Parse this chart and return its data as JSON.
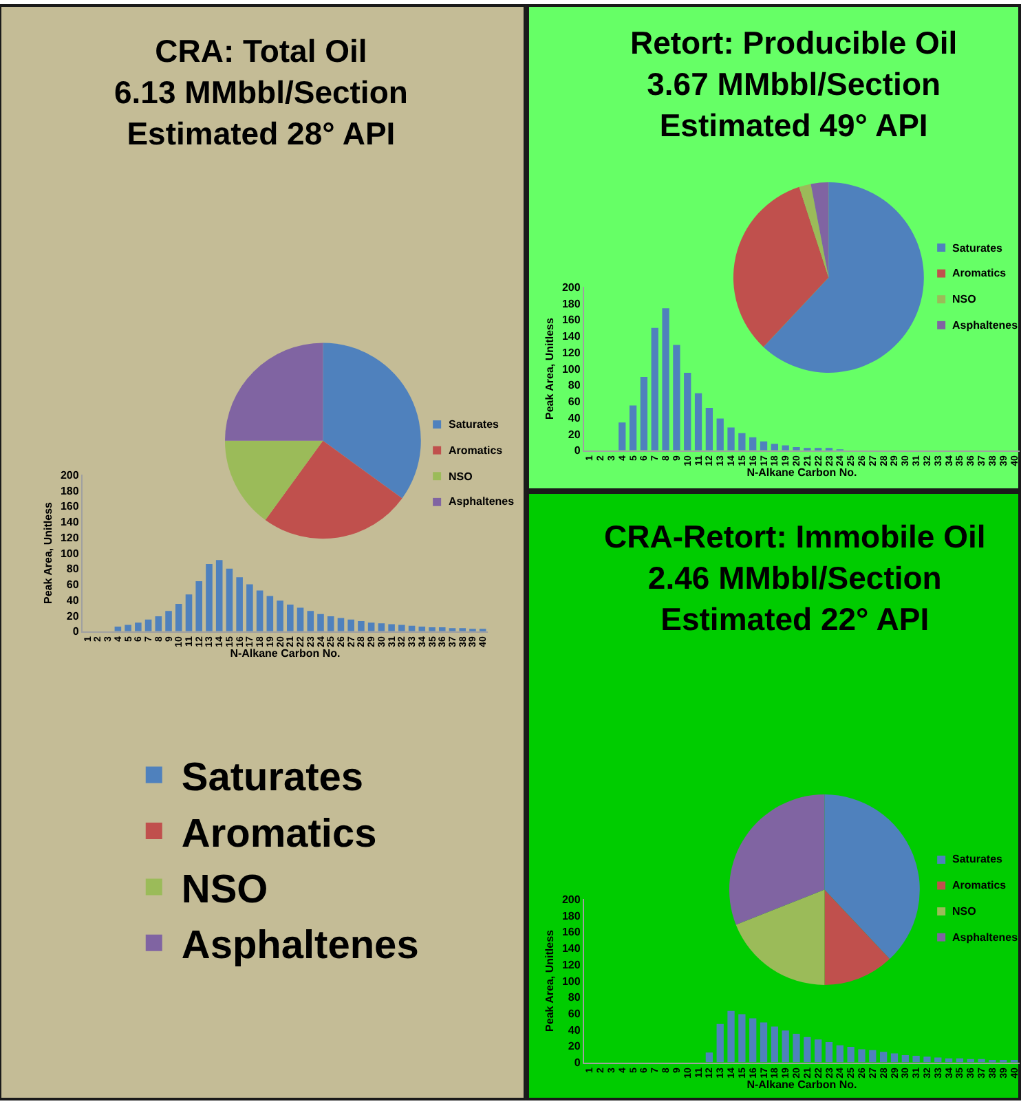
{
  "chart_data": [
    {
      "type": "pie",
      "title": "CRA: Total Oil\n6.13 MMbbl/Section\nEstimated 28° API",
      "categories": [
        "Saturates",
        "Aromatics",
        "NSO",
        "Asphaltenes"
      ],
      "values": [
        35,
        25,
        15,
        25
      ],
      "colors": [
        "#4f81bd",
        "#c0504d",
        "#9bbb59",
        "#8064a2"
      ],
      "legend": "right"
    },
    {
      "type": "bar",
      "categories": [
        "1",
        "2",
        "3",
        "4",
        "5",
        "6",
        "7",
        "8",
        "9",
        "10",
        "11",
        "12",
        "13",
        "14",
        "15",
        "16",
        "17",
        "18",
        "19",
        "20",
        "21",
        "22",
        "23",
        "24",
        "25",
        "26",
        "27",
        "28",
        "29",
        "30",
        "31",
        "32",
        "33",
        "34",
        "35",
        "36",
        "37",
        "38",
        "39",
        "40"
      ],
      "values": [
        0,
        0,
        0,
        6,
        8,
        11,
        15,
        19,
        26,
        35,
        47,
        64,
        86,
        91,
        80,
        69,
        60,
        52,
        45,
        39,
        34,
        30,
        26,
        22,
        19,
        17,
        15,
        13,
        11,
        10,
        9,
        8,
        7,
        6,
        5,
        5,
        4,
        4,
        3,
        3
      ],
      "color": "#4f81bd",
      "xlabel": "N-Alkane Carbon No.",
      "ylabel": "Peak Area, Unitless",
      "ylim": [
        0,
        200
      ],
      "yticks": [
        0,
        20,
        40,
        60,
        80,
        100,
        120,
        140,
        160,
        180,
        200
      ]
    },
    {
      "type": "pie",
      "title": "Retort: Producible Oil\n3.67 MMbbl/Section\nEstimated 49° API",
      "categories": [
        "Saturates",
        "Aromatics",
        "NSO",
        "Asphaltenes"
      ],
      "values": [
        62,
        33,
        2,
        3
      ],
      "colors": [
        "#4f81bd",
        "#c0504d",
        "#9bbb59",
        "#8064a2"
      ],
      "legend": "right"
    },
    {
      "type": "bar",
      "categories": [
        "1",
        "2",
        "3",
        "4",
        "5",
        "6",
        "7",
        "8",
        "9",
        "10",
        "11",
        "12",
        "13",
        "14",
        "15",
        "16",
        "17",
        "18",
        "19",
        "20",
        "21",
        "22",
        "23",
        "24",
        "25",
        "26",
        "27",
        "28",
        "29",
        "30",
        "31",
        "32",
        "33",
        "34",
        "35",
        "36",
        "37",
        "38",
        "39",
        "40"
      ],
      "values": [
        0,
        0,
        0,
        34,
        55,
        90,
        150,
        174,
        129,
        95,
        70,
        52,
        39,
        28,
        21,
        16,
        11,
        8,
        6,
        4,
        3,
        2,
        2,
        1,
        0,
        0,
        0,
        0,
        0,
        0,
        0,
        0,
        0,
        0,
        0,
        0,
        0,
        0,
        0,
        0
      ],
      "color": "#4f81bd",
      "xlabel": "N-Alkane Carbon No.",
      "ylabel": "Peak Area, Unitless",
      "ylim": [
        0,
        200
      ],
      "yticks": [
        0,
        20,
        40,
        60,
        80,
        100,
        120,
        140,
        160,
        180,
        200
      ]
    },
    {
      "type": "pie",
      "title": "CRA-Retort: Immobile Oil\n2.46 MMbbl/Section\nEstimated 22° API",
      "categories": [
        "Saturates",
        "Aromatics",
        "NSO",
        "Asphaltenes"
      ],
      "values": [
        38,
        12,
        19,
        31
      ],
      "colors": [
        "#4f81bd",
        "#c0504d",
        "#9bbb59",
        "#8064a2"
      ],
      "legend": "right"
    },
    {
      "type": "bar",
      "categories": [
        "1",
        "2",
        "3",
        "4",
        "5",
        "6",
        "7",
        "8",
        "9",
        "10",
        "11",
        "12",
        "13",
        "14",
        "15",
        "16",
        "17",
        "18",
        "19",
        "20",
        "21",
        "22",
        "23",
        "24",
        "25",
        "26",
        "27",
        "28",
        "29",
        "30",
        "31",
        "32",
        "33",
        "34",
        "35",
        "36",
        "37",
        "38",
        "39",
        "40"
      ],
      "values": [
        0,
        0,
        0,
        0,
        0,
        0,
        0,
        0,
        0,
        0,
        0,
        12,
        47,
        63,
        59,
        54,
        49,
        44,
        39,
        35,
        31,
        28,
        25,
        21,
        19,
        16,
        15,
        13,
        11,
        9,
        8,
        7,
        6,
        5,
        5,
        4,
        4,
        3,
        3,
        3
      ],
      "color": "#4f81bd",
      "xlabel": "N-Alkane Carbon No.",
      "ylabel": "Peak Area, Unitless",
      "ylim": [
        0,
        200
      ],
      "yticks": [
        0,
        20,
        40,
        60,
        80,
        100,
        120,
        140,
        160,
        180,
        200
      ]
    }
  ]
}
